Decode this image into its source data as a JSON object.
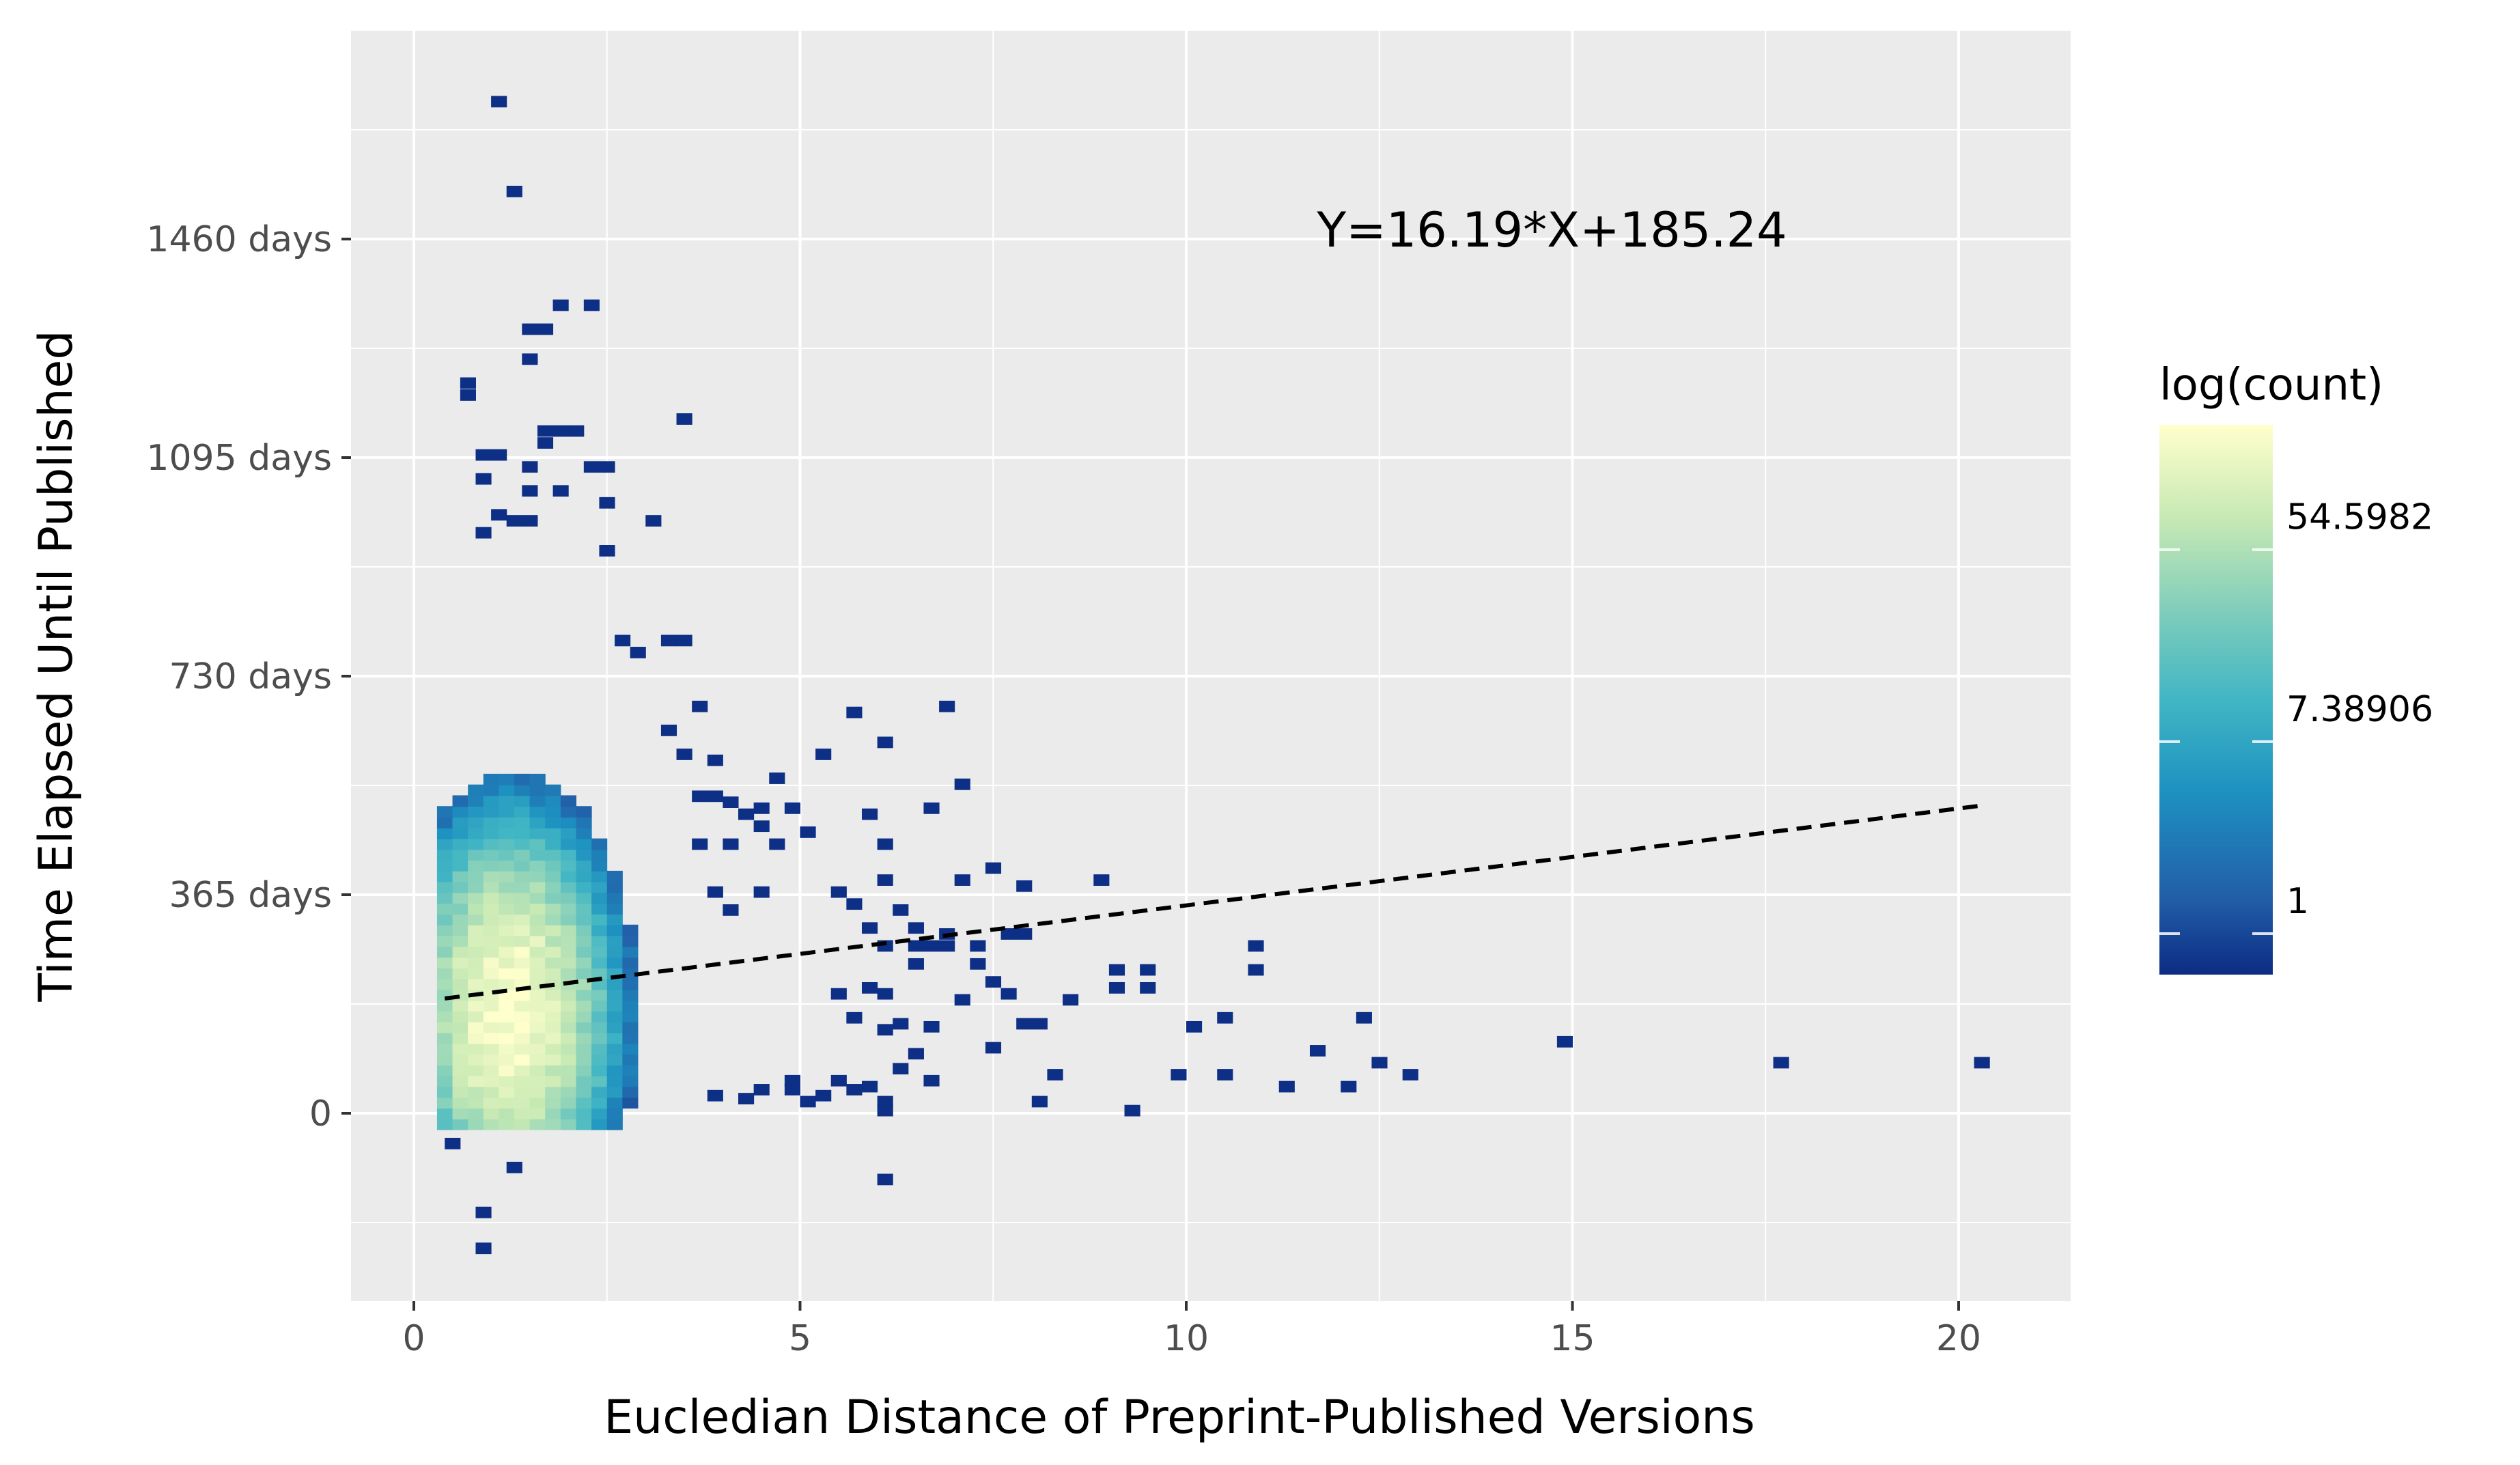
{
  "chart_data": {
    "type": "heatmap",
    "subtype": "2d-bin-count",
    "title": "",
    "xlabel": "Eucledian Distance of Preprint-Published Versions",
    "ylabel": "Time Elapsed Until Published",
    "xlim": [
      -0.8,
      21.3
    ],
    "ylim": [
      -330,
      1740
    ],
    "x_ticks": [
      {
        "value": 0,
        "label": "0"
      },
      {
        "value": 5,
        "label": "5"
      },
      {
        "value": 10,
        "label": "10"
      },
      {
        "value": 15,
        "label": "15"
      },
      {
        "value": 20,
        "label": "20"
      }
    ],
    "y_ticks": [
      {
        "value": 0,
        "label": "0"
      },
      {
        "value": 365,
        "label": "365 days"
      },
      {
        "value": 730,
        "label": "730 days"
      },
      {
        "value": 1095,
        "label": "1095 days"
      },
      {
        "value": 1460,
        "label": "1460 days"
      }
    ],
    "grid": true,
    "panel_background": "#ebebeb",
    "bin_size": {
      "x": 0.2,
      "y": 18
    },
    "trend_line": {
      "slope": 16.19,
      "intercept": 185.24,
      "x_range": [
        0.4,
        20.3
      ],
      "style": "dashed",
      "color": "#000000",
      "annotation": "Y=16.19*X+185.24",
      "annotation_at": {
        "x": 15,
        "y": 1470
      }
    },
    "legend": {
      "title": "log(count)",
      "position": "right",
      "labels": [
        {
          "value": 0,
          "label": "1"
        },
        {
          "value": 2,
          "label": "7.38906"
        },
        {
          "value": 4,
          "label": "54.5982"
        }
      ],
      "range": [
        0,
        5.3
      ],
      "colors": [
        "#0c2c84",
        "#225ea8",
        "#1d91c0",
        "#41b6c4",
        "#7fcdbb",
        "#c7e9b4",
        "#ffffcc"
      ]
    },
    "sparse_bins": [
      {
        "x": 1.1,
        "y": 1690
      },
      {
        "x": 1.3,
        "y": 1540
      },
      {
        "x": 1.9,
        "y": 1350
      },
      {
        "x": 2.3,
        "y": 1350
      },
      {
        "x": 1.5,
        "y": 1310
      },
      {
        "x": 1.7,
        "y": 1310
      },
      {
        "x": 1.5,
        "y": 1260
      },
      {
        "x": 0.7,
        "y": 1220
      },
      {
        "x": 0.7,
        "y": 1200
      },
      {
        "x": 3.5,
        "y": 1160
      },
      {
        "x": 1.7,
        "y": 1140
      },
      {
        "x": 1.9,
        "y": 1140
      },
      {
        "x": 2.1,
        "y": 1140
      },
      {
        "x": 1.7,
        "y": 1120
      },
      {
        "x": 0.9,
        "y": 1100
      },
      {
        "x": 1.1,
        "y": 1100
      },
      {
        "x": 1.5,
        "y": 1080
      },
      {
        "x": 2.3,
        "y": 1080
      },
      {
        "x": 2.5,
        "y": 1080
      },
      {
        "x": 0.9,
        "y": 1060
      },
      {
        "x": 1.5,
        "y": 1040
      },
      {
        "x": 1.9,
        "y": 1040
      },
      {
        "x": 2.5,
        "y": 1020
      },
      {
        "x": 1.1,
        "y": 1000
      },
      {
        "x": 3.1,
        "y": 990
      },
      {
        "x": 1.3,
        "y": 990
      },
      {
        "x": 1.5,
        "y": 990
      },
      {
        "x": 0.9,
        "y": 970
      },
      {
        "x": 2.5,
        "y": 940
      },
      {
        "x": 3.3,
        "y": 790
      },
      {
        "x": 3.5,
        "y": 790
      },
      {
        "x": 2.7,
        "y": 790
      },
      {
        "x": 2.9,
        "y": 770
      },
      {
        "x": 6.9,
        "y": 680
      },
      {
        "x": 3.7,
        "y": 680
      },
      {
        "x": 5.7,
        "y": 670
      },
      {
        "x": 3.3,
        "y": 640
      },
      {
        "x": 6.1,
        "y": 620
      },
      {
        "x": 5.3,
        "y": 600
      },
      {
        "x": 3.5,
        "y": 600
      },
      {
        "x": 3.9,
        "y": 590
      },
      {
        "x": 4.7,
        "y": 560
      },
      {
        "x": 7.1,
        "y": 550
      },
      {
        "x": 3.7,
        "y": 530
      },
      {
        "x": 3.9,
        "y": 530
      },
      {
        "x": 4.1,
        "y": 520
      },
      {
        "x": 6.7,
        "y": 510
      },
      {
        "x": 4.5,
        "y": 510
      },
      {
        "x": 4.9,
        "y": 510
      },
      {
        "x": 4.3,
        "y": 500
      },
      {
        "x": 5.9,
        "y": 500
      },
      {
        "x": 4.5,
        "y": 480
      },
      {
        "x": 5.1,
        "y": 470
      },
      {
        "x": 3.7,
        "y": 450
      },
      {
        "x": 4.1,
        "y": 450
      },
      {
        "x": 4.7,
        "y": 450
      },
      {
        "x": 6.1,
        "y": 450
      },
      {
        "x": 7.5,
        "y": 410
      },
      {
        "x": 6.1,
        "y": 390
      },
      {
        "x": 7.1,
        "y": 390
      },
      {
        "x": 8.9,
        "y": 390
      },
      {
        "x": 7.9,
        "y": 380
      },
      {
        "x": 5.5,
        "y": 370
      },
      {
        "x": 3.9,
        "y": 370
      },
      {
        "x": 4.5,
        "y": 370
      },
      {
        "x": 5.7,
        "y": 350
      },
      {
        "x": 4.1,
        "y": 340
      },
      {
        "x": 6.3,
        "y": 340
      },
      {
        "x": 6.5,
        "y": 310
      },
      {
        "x": 5.9,
        "y": 310
      },
      {
        "x": 6.1,
        "y": 280
      },
      {
        "x": 6.5,
        "y": 280
      },
      {
        "x": 6.7,
        "y": 280
      },
      {
        "x": 6.9,
        "y": 280
      },
      {
        "x": 6.9,
        "y": 300
      },
      {
        "x": 7.3,
        "y": 280
      },
      {
        "x": 7.7,
        "y": 300
      },
      {
        "x": 7.9,
        "y": 300
      },
      {
        "x": 10.9,
        "y": 280
      },
      {
        "x": 10.9,
        "y": 240
      },
      {
        "x": 9.1,
        "y": 240
      },
      {
        "x": 9.5,
        "y": 240
      },
      {
        "x": 9.1,
        "y": 210
      },
      {
        "x": 9.5,
        "y": 210
      },
      {
        "x": 7.3,
        "y": 250
      },
      {
        "x": 7.5,
        "y": 220
      },
      {
        "x": 7.7,
        "y": 200
      },
      {
        "x": 8.5,
        "y": 190
      },
      {
        "x": 7.1,
        "y": 190
      },
      {
        "x": 6.1,
        "y": 200
      },
      {
        "x": 5.5,
        "y": 200
      },
      {
        "x": 5.9,
        "y": 210
      },
      {
        "x": 6.5,
        "y": 250
      },
      {
        "x": 12.3,
        "y": 160
      },
      {
        "x": 10.5,
        "y": 160
      },
      {
        "x": 10.1,
        "y": 145
      },
      {
        "x": 7.9,
        "y": 150
      },
      {
        "x": 8.1,
        "y": 150
      },
      {
        "x": 6.7,
        "y": 145
      },
      {
        "x": 6.1,
        "y": 140
      },
      {
        "x": 6.3,
        "y": 150
      },
      {
        "x": 5.7,
        "y": 160
      },
      {
        "x": 14.9,
        "y": 120
      },
      {
        "x": 11.7,
        "y": 105
      },
      {
        "x": 7.5,
        "y": 110
      },
      {
        "x": 6.5,
        "y": 100
      },
      {
        "x": 17.7,
        "y": 85
      },
      {
        "x": 20.3,
        "y": 85
      },
      {
        "x": 12.5,
        "y": 85
      },
      {
        "x": 6.3,
        "y": 75
      },
      {
        "x": 8.3,
        "y": 65
      },
      {
        "x": 9.9,
        "y": 65
      },
      {
        "x": 10.5,
        "y": 65
      },
      {
        "x": 12.9,
        "y": 65
      },
      {
        "x": 6.7,
        "y": 55
      },
      {
        "x": 11.3,
        "y": 45
      },
      {
        "x": 12.1,
        "y": 45
      },
      {
        "x": 5.9,
        "y": 45
      },
      {
        "x": 5.5,
        "y": 55
      },
      {
        "x": 4.9,
        "y": 55
      },
      {
        "x": 4.5,
        "y": 40
      },
      {
        "x": 4.3,
        "y": 25
      },
      {
        "x": 3.9,
        "y": 30
      },
      {
        "x": 5.3,
        "y": 30
      },
      {
        "x": 8.1,
        "y": 20
      },
      {
        "x": 5.1,
        "y": 20
      },
      {
        "x": 6.1,
        "y": 20
      },
      {
        "x": 6.1,
        "y": 5
      },
      {
        "x": 9.3,
        "y": 5
      },
      {
        "x": 4.9,
        "y": 40
      },
      {
        "x": 5.7,
        "y": 40
      },
      {
        "x": 0.5,
        "y": -50
      },
      {
        "x": 1.3,
        "y": -90
      },
      {
        "x": 6.1,
        "y": -110
      },
      {
        "x": 0.9,
        "y": -165
      },
      {
        "x": 0.9,
        "y": -225
      }
    ]
  }
}
